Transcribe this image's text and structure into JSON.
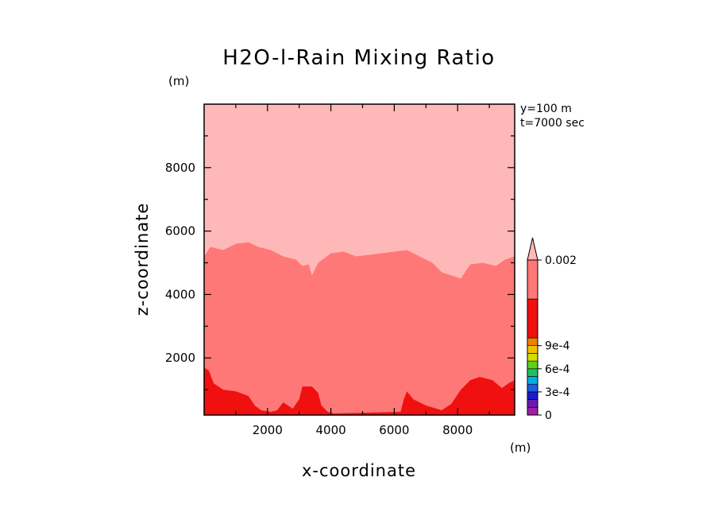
{
  "chart_data": {
    "type": "contour",
    "title": "H2O-l-Rain Mixing Ratio",
    "xlabel": "x-coordinate",
    "ylabel": "z-coordinate",
    "x_unit": "(m)",
    "y_unit": "(m)",
    "annotations": [
      "y=100 m",
      "t=7000 sec"
    ],
    "xlim": [
      0,
      9800
    ],
    "ylim": [
      200,
      10000
    ],
    "x_ticks": [
      2000,
      4000,
      6000,
      8000
    ],
    "y_ticks": [
      2000,
      4000,
      6000,
      8000
    ],
    "x_tick_labels": [
      "2000",
      "4000",
      "6000",
      "8000"
    ],
    "y_tick_labels": [
      "2000",
      "4000",
      "6000",
      "8000"
    ],
    "colorbar": {
      "levels": [
        0,
        0.0001,
        0.0002,
        0.0003,
        0.0004,
        0.0005,
        0.0006,
        0.0007,
        0.0008,
        0.0009,
        0.001,
        0.0015,
        0.002
      ],
      "colors": [
        "#a020a0",
        "#6a1ab0",
        "#1a1ad0",
        "#1a60e0",
        "#00b0e0",
        "#20c060",
        "#60d020",
        "#d0e000",
        "#f0c000",
        "#f08000",
        "#f01010",
        "#ff7878",
        "#ffb8b8"
      ],
      "tick_values": [
        0,
        0.0003,
        0.0006,
        0.0009,
        0.002
      ],
      "tick_labels": [
        "0",
        "3e-4",
        "6e-4",
        "9e-4",
        "0.002"
      ],
      "extend": "max"
    },
    "regions": [
      {
        "level": "above 0.002",
        "color": "#ffb8b8",
        "boundary": "upper",
        "points": [
          [
            0,
            5200
          ],
          [
            200,
            5500
          ],
          [
            600,
            5400
          ],
          [
            1000,
            5600
          ],
          [
            1400,
            5650
          ],
          [
            1700,
            5500
          ],
          [
            2100,
            5400
          ],
          [
            2500,
            5200
          ],
          [
            2900,
            5100
          ],
          [
            3100,
            4900
          ],
          [
            3300,
            4950
          ],
          [
            3400,
            4600
          ],
          [
            3600,
            5000
          ],
          [
            4000,
            5300
          ],
          [
            4400,
            5350
          ],
          [
            4800,
            5200
          ],
          [
            5200,
            5250
          ],
          [
            5600,
            5300
          ],
          [
            6000,
            5350
          ],
          [
            6400,
            5400
          ],
          [
            6800,
            5200
          ],
          [
            7200,
            5000
          ],
          [
            7500,
            4700
          ],
          [
            7800,
            4600
          ],
          [
            8100,
            4500
          ],
          [
            8400,
            4950
          ],
          [
            8800,
            5000
          ],
          [
            9200,
            4900
          ],
          [
            9500,
            5100
          ],
          [
            9800,
            5200
          ]
        ]
      },
      {
        "level": "0.001 - 0.0015",
        "color": "#f01010",
        "boundary": "lower",
        "points": [
          [
            0,
            1700
          ],
          [
            150,
            1600
          ],
          [
            300,
            1200
          ],
          [
            600,
            1000
          ],
          [
            1000,
            950
          ],
          [
            1400,
            800
          ],
          [
            1600,
            500
          ],
          [
            1800,
            350
          ],
          [
            2100,
            300
          ],
          [
            2300,
            350
          ],
          [
            2500,
            600
          ],
          [
            2800,
            400
          ],
          [
            3000,
            700
          ],
          [
            3100,
            1100
          ],
          [
            3400,
            1100
          ],
          [
            3600,
            900
          ],
          [
            3700,
            500
          ],
          [
            3900,
            300
          ],
          [
            4100,
            250
          ],
          [
            6200,
            300
          ],
          [
            6300,
            700
          ],
          [
            6400,
            950
          ],
          [
            6600,
            700
          ],
          [
            7000,
            500
          ],
          [
            7500,
            350
          ],
          [
            7800,
            550
          ],
          [
            8100,
            1000
          ],
          [
            8400,
            1300
          ],
          [
            8700,
            1400
          ],
          [
            9100,
            1300
          ],
          [
            9400,
            1050
          ],
          [
            9600,
            1200
          ],
          [
            9800,
            1300
          ]
        ]
      }
    ]
  }
}
